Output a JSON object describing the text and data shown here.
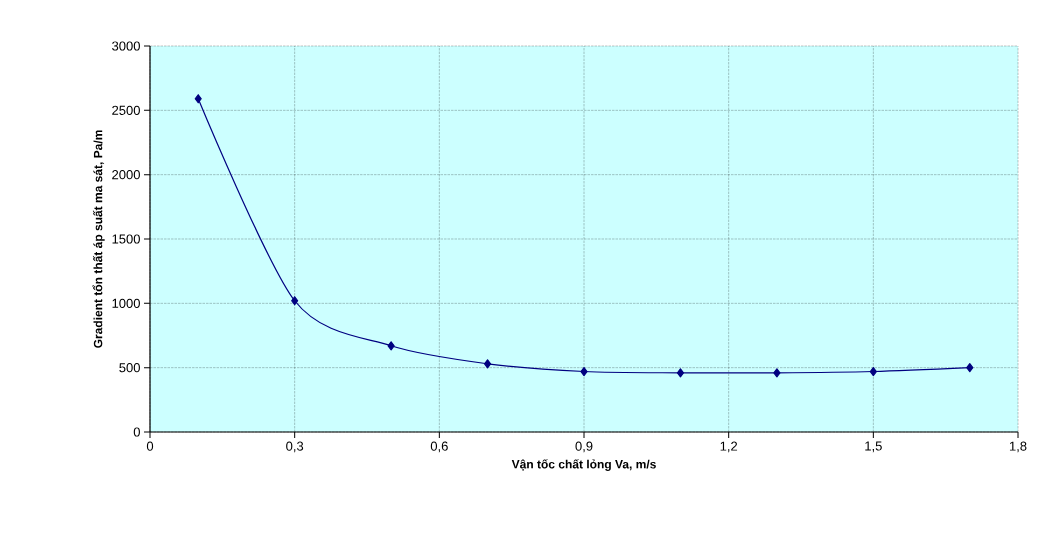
{
  "chart_data": {
    "type": "line",
    "xlabel": "Vận tốc chất lỏng Va, m/s",
    "ylabel": "Gradient tổn thất áp suất ma sát, Pa/m",
    "x": [
      0.1,
      0.3,
      0.5,
      0.7,
      0.9,
      1.1,
      1.3,
      1.5,
      1.7
    ],
    "series": [
      {
        "color": "#000080",
        "values": [
          2590,
          1020,
          670,
          530,
          470,
          460,
          460,
          470,
          500
        ]
      }
    ],
    "xlim": [
      0,
      1.8
    ],
    "xticks": [
      0,
      {
        "value": 0.3,
        "label": "0,3"
      },
      {
        "value": 0.6,
        "label": "0,6"
      },
      {
        "value": 0.9,
        "label": "0,9"
      },
      {
        "value": 1.2,
        "label": "1,2"
      },
      {
        "value": 1.5,
        "label": "1,5"
      },
      {
        "value": 1.8,
        "label": "1,8"
      }
    ],
    "ylim": [
      0,
      3000
    ],
    "yticks": [
      0,
      500,
      1000,
      1500,
      2000,
      2500,
      3000
    ],
    "grid": true,
    "marker": "diamond",
    "line_style": "solid"
  }
}
